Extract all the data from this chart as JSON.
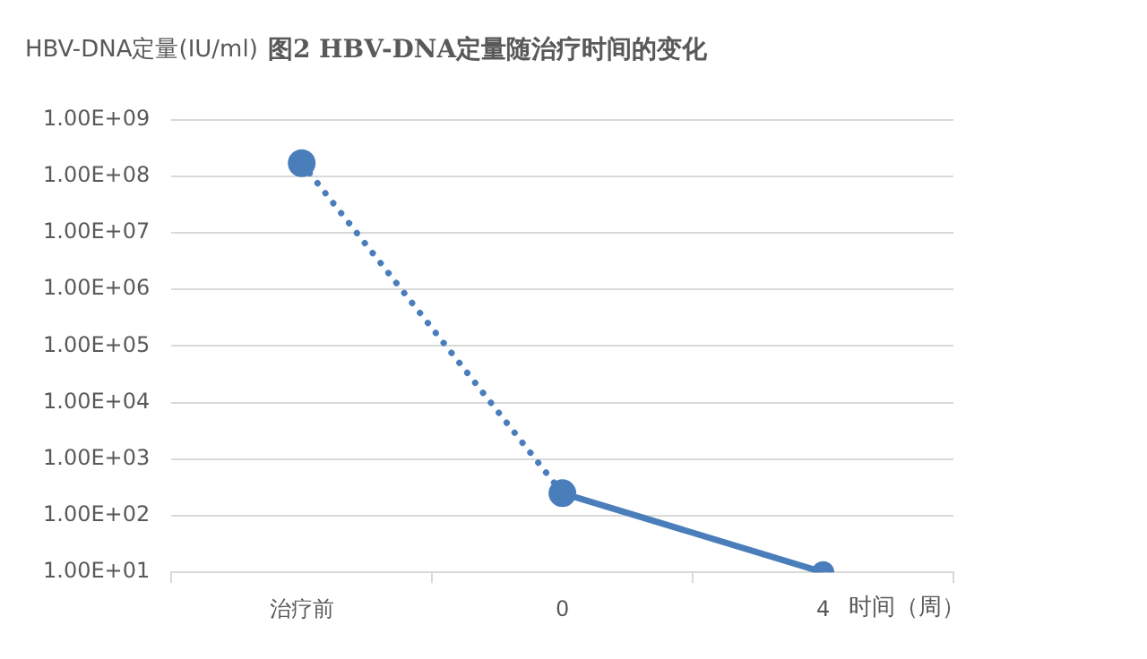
{
  "chart_data": {
    "type": "line",
    "title": "图2 HBV-DNA定量随治疗时间的变化",
    "ylabel": "HBV-DNA定量(IU/ml)",
    "xlabel": "时间（周）",
    "categories": [
      "治疗前",
      "0",
      "4"
    ],
    "series": [
      {
        "color": "#4a7ebb",
        "line_style": "dotted",
        "values": [
          170000000,
          250,
          null
        ]
      },
      {
        "color": "#4a7ebb",
        "line_style": "solid",
        "values": [
          null,
          250,
          10
        ]
      }
    ],
    "log": "y",
    "ylim": [
      10,
      1000000000
    ],
    "yticks": [
      {
        "value": 10,
        "label": "1.00E+01"
      },
      {
        "value": 100,
        "label": "1.00E+02"
      },
      {
        "value": 1000,
        "label": "1.00E+03"
      },
      {
        "value": 10000,
        "label": "1.00E+04"
      },
      {
        "value": 100000,
        "label": "1.00E+05"
      },
      {
        "value": 1000000,
        "label": "1.00E+06"
      },
      {
        "value": 10000000,
        "label": "1.00E+07"
      },
      {
        "value": 100000000,
        "label": "1.00E+08"
      },
      {
        "value": 1000000000,
        "label": "1.00E+09"
      }
    ],
    "grid": "y",
    "legend": false,
    "marker": "circle"
  }
}
